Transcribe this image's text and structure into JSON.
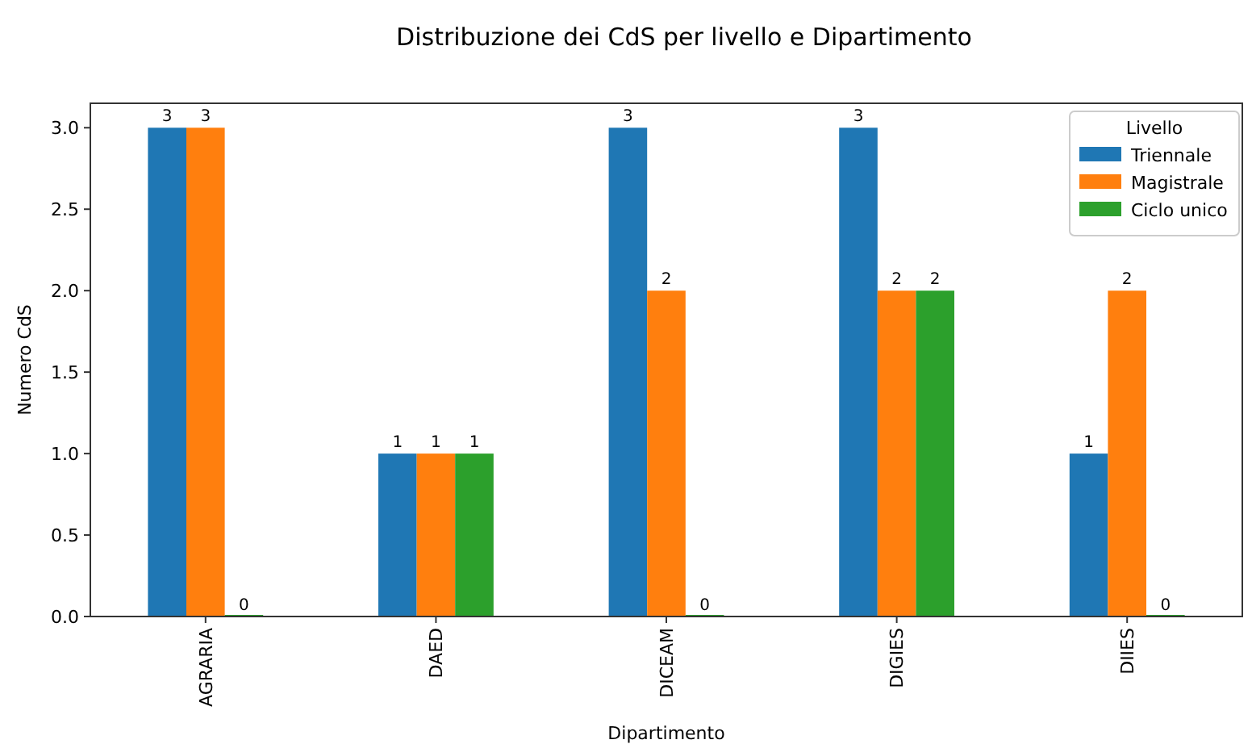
{
  "chart_data": {
    "type": "bar",
    "title": "Distribuzione dei CdS per livello e Dipartimento",
    "xlabel": "Dipartimento",
    "ylabel": "Numero CdS",
    "legend_title": "Livello",
    "categories": [
      "AGRARIA",
      "DAED",
      "DICEAM",
      "DIGIES",
      "DIIES"
    ],
    "series": [
      {
        "name": "Triennale",
        "color": "#1f77b4",
        "values": [
          3,
          1,
          3,
          3,
          1
        ]
      },
      {
        "name": "Magistrale",
        "color": "#ff7f0e",
        "values": [
          3,
          1,
          2,
          2,
          2
        ]
      },
      {
        "name": "Ciclo unico",
        "color": "#2ca02c",
        "values": [
          0,
          1,
          0,
          2,
          0
        ]
      }
    ],
    "ylim": [
      0,
      3.15
    ],
    "yticks": [
      {
        "value": 0,
        "label": "0.0"
      },
      {
        "value": 0.5,
        "label": "0.5"
      },
      {
        "value": 1,
        "label": "1.0"
      },
      {
        "value": 1.5,
        "label": "1.5"
      },
      {
        "value": 2,
        "label": "2.0"
      },
      {
        "value": 2.5,
        "label": "2.5"
      },
      {
        "value": 3,
        "label": "3.0"
      }
    ],
    "data_labels": true,
    "legend": "top right",
    "grid": false
  }
}
